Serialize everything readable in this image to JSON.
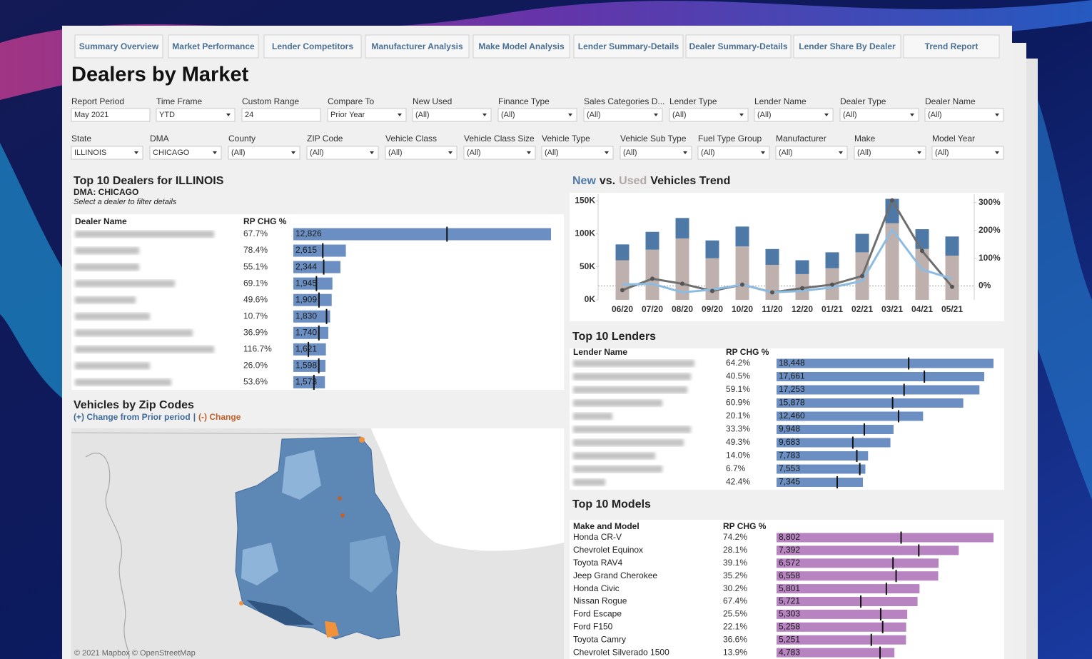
{
  "tabs": [
    "Summary Overview",
    "Market Performance",
    "Lender Competitors",
    "Manufacturer Analysis",
    "Make Model Analysis",
    "Lender Summary-Details",
    "Dealer Summary-Details",
    "Lender Share By Dealer",
    "Trend Report"
  ],
  "title": "Dealers by Market",
  "filters": [
    [
      {
        "label": "Report Period",
        "value": "May 2021",
        "dropdown": false
      },
      {
        "label": "Time Frame",
        "value": "YTD",
        "dropdown": true
      },
      {
        "label": "Custom Range",
        "value": "24",
        "dropdown": false
      },
      {
        "label": "Compare To",
        "value": "Prior Year",
        "dropdown": true
      },
      {
        "label": "New Used",
        "value": "(All)",
        "dropdown": true
      },
      {
        "label": "Finance Type",
        "value": "(All)",
        "dropdown": true
      },
      {
        "label": "Sales Categories D...",
        "value": "(All)",
        "dropdown": true
      },
      {
        "label": "Lender Type",
        "value": "(All)",
        "dropdown": true
      },
      {
        "label": "Lender Name",
        "value": "(All)",
        "dropdown": true
      },
      {
        "label": "Dealer Type",
        "value": "(All)",
        "dropdown": true
      },
      {
        "label": "Dealer Name",
        "value": "(All)",
        "dropdown": true
      }
    ],
    [
      {
        "label": "State",
        "value": "ILLINOIS",
        "dropdown": true
      },
      {
        "label": "DMA",
        "value": "CHICAGO",
        "dropdown": true
      },
      {
        "label": "County",
        "value": "(All)",
        "dropdown": true
      },
      {
        "label": "ZIP Code",
        "value": "(All)",
        "dropdown": true
      },
      {
        "label": "Vehicle Class",
        "value": "(All)",
        "dropdown": true
      },
      {
        "label": "Vehicle Class Size",
        "value": "(All)",
        "dropdown": true
      },
      {
        "label": "Vehicle Type",
        "value": "(All)",
        "dropdown": true
      },
      {
        "label": "Vehicle Sub Type",
        "value": "(All)",
        "dropdown": true
      },
      {
        "label": "Fuel Type Group",
        "value": "(All)",
        "dropdown": true
      },
      {
        "label": "Manufacturer",
        "value": "(All)",
        "dropdown": true
      },
      {
        "label": "Make",
        "value": "(All)",
        "dropdown": true
      },
      {
        "label": "Model Year",
        "value": "(All)",
        "dropdown": true
      }
    ]
  ],
  "chart_data": [
    {
      "type": "bar",
      "title": "Top 10 Dealers for ILLINOIS",
      "subtitle": "DMA: CHICAGO",
      "note": "Select a dealer to filter details",
      "headers": [
        "Dealer Name",
        "RP CHG %"
      ],
      "categories": [
        null,
        null,
        null,
        null,
        null,
        null,
        null,
        null,
        null,
        null
      ],
      "rp_chg": [
        "67.7%",
        "78.4%",
        "55.1%",
        "69.1%",
        "49.6%",
        "10.7%",
        "36.9%",
        "116.7%",
        "26.0%",
        "53.6%"
      ],
      "values": [
        12826,
        2615,
        2344,
        1945,
        1909,
        1830,
        1740,
        1621,
        1598,
        1573
      ],
      "value_labels": [
        "12,826",
        "2,615",
        "2,344",
        "1,945",
        "1,909",
        "1,830",
        "1,740",
        "1,621",
        "1,598",
        "1,573"
      ],
      "reference": [
        7648,
        1466,
        1511,
        1150,
        1276,
        1653,
        1271,
        748,
        1268,
        1024
      ],
      "color": "#6b8fc2"
    },
    {
      "type": "combo",
      "title_parts": [
        "New",
        "vs.",
        "Used",
        "Vehicles Trend"
      ],
      "title_colors": [
        "#4e79a7",
        "#222222",
        "#b0a6a4",
        "#222222"
      ],
      "categories": [
        "06/20",
        "07/20",
        "08/20",
        "09/20",
        "10/20",
        "11/20",
        "12/20",
        "01/21",
        "02/21",
        "03/21",
        "04/21",
        "05/21"
      ],
      "series": [
        {
          "kind": "bar",
          "color": "#bdb0ad",
          "values": [
            60000,
            76000,
            93000,
            63000,
            81000,
            53000,
            39000,
            48000,
            72000,
            116000,
            77000,
            67000
          ]
        },
        {
          "kind": "bar",
          "color": "#4e79a7",
          "values": [
            24000,
            27000,
            31000,
            27000,
            30000,
            24000,
            21000,
            24000,
            28000,
            37000,
            30000,
            29000
          ]
        },
        {
          "kind": "line",
          "axis": "y2",
          "color": "#6e6e6e",
          "values": [
            -15,
            26,
            8,
            -18,
            5,
            -23,
            -8,
            5,
            36,
            308,
            126,
            -3
          ]
        },
        {
          "kind": "line",
          "axis": "y2",
          "color": "#8dbce3",
          "values": [
            5,
            8,
            -23,
            -13,
            5,
            -23,
            -18,
            -5,
            18,
            203,
            59,
            26
          ]
        }
      ],
      "ylim": [
        0,
        160000
      ],
      "yticks": [
        {
          "value": 0,
          "label": "0K"
        },
        {
          "value": 50000,
          "label": "50K"
        },
        {
          "value": 100000,
          "label": "100K"
        },
        {
          "value": 150000,
          "label": "150K"
        }
      ],
      "y2lim": [
        -50,
        330
      ],
      "y2ticks": [
        {
          "value": 0,
          "label": "0%"
        },
        {
          "value": 100,
          "label": "100%"
        },
        {
          "value": 200,
          "label": "200%"
        },
        {
          "value": 300,
          "label": "300%"
        }
      ]
    },
    {
      "type": "bar",
      "title": "Top 10 Lenders",
      "headers": [
        "Lender Name",
        "RP CHG %"
      ],
      "categories": [
        null,
        null,
        null,
        null,
        null,
        null,
        null,
        null,
        null,
        null
      ],
      "rp_chg": [
        "64.2%",
        "40.5%",
        "59.1%",
        "60.9%",
        "20.1%",
        "33.3%",
        "49.3%",
        "14.0%",
        "6.7%",
        "42.4%"
      ],
      "values": [
        18448,
        17661,
        17253,
        15878,
        12460,
        9948,
        9683,
        7783,
        7553,
        7345
      ],
      "value_labels": [
        "18,448",
        "17,661",
        "17,253",
        "15,878",
        "12,460",
        "9,948",
        "9,683",
        "7,783",
        "7,553",
        "7,345"
      ],
      "reference": [
        11235,
        12570,
        10844,
        9869,
        10374,
        7462,
        6486,
        6827,
        7079,
        5158
      ],
      "color": "#6b8fc2"
    },
    {
      "type": "bar",
      "title": "Top 10 Models",
      "headers": [
        "Make and Model",
        "RP CHG %"
      ],
      "categories": [
        "Honda CR-V",
        "Chevrolet Equinox",
        "Toyota RAV4",
        "Jeep Grand Cherokee",
        "Honda Civic",
        "Nissan Rogue",
        "Ford Escape",
        "Ford F150",
        "Toyota Camry",
        "Chevrolet Silverado 1500"
      ],
      "rp_chg": [
        "74.2%",
        "28.1%",
        "39.1%",
        "35.2%",
        "30.2%",
        "67.4%",
        "25.5%",
        "22.1%",
        "36.6%",
        "13.9%"
      ],
      "values": [
        8802,
        7392,
        6572,
        6558,
        5801,
        5721,
        5303,
        5258,
        5251,
        4783
      ],
      "value_labels": [
        "8,802",
        "7,392",
        "6,572",
        "6,558",
        "5,801",
        "5,721",
        "5,303",
        "5,258",
        "5,251",
        "4,783"
      ],
      "reference": [
        5053,
        5770,
        4725,
        4851,
        4455,
        3418,
        4226,
        4306,
        3844,
        4199
      ],
      "color": "#b784c1"
    }
  ],
  "map": {
    "title": "Vehicles by Zip Codes",
    "subtitle": [
      "(+) Change from Prior period",
      "|",
      "(-) Change"
    ],
    "subtitle_colors": [
      "#3e6a9a",
      "#3e6a9a",
      "#c0602a"
    ],
    "attribution": "© 2021 Mapbox © OpenStreetMap"
  }
}
